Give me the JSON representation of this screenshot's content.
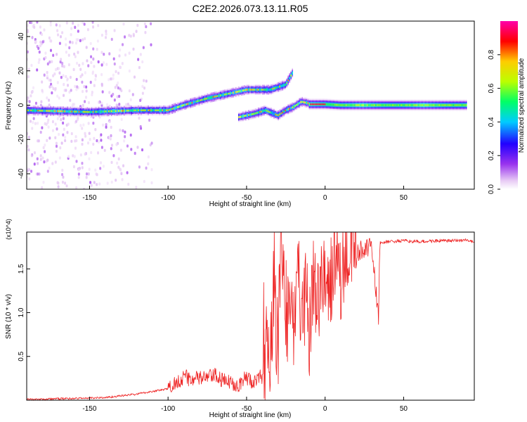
{
  "figure_title": "C2E2.2026.073.13.11.R05",
  "colors": {
    "snr_line": "#ee2222",
    "axis": "#000000",
    "background": "#ffffff"
  },
  "chart_data": [
    {
      "type": "heatmap",
      "name": "spectrogram",
      "title": "C2E2.2026.073.13.11.R05",
      "xlabel": "Height of straight line (km)",
      "ylabel": "Frequency (Hz)",
      "xlim": [
        -190,
        95
      ],
      "ylim": [
        -49,
        49
      ],
      "x_ticks": [
        -150,
        -100,
        -50,
        0,
        50
      ],
      "y_ticks": [
        -40,
        -20,
        0,
        20,
        40
      ],
      "colorbar": {
        "label": "Normalized spectral amplitude",
        "range": [
          0.0,
          1.0
        ],
        "ticks": [
          0.0,
          0.2,
          0.4,
          0.6,
          0.8
        ],
        "colormap": [
          "#ffffff",
          "#e8ccf5",
          "#9933ee",
          "#2200ff",
          "#00ccff",
          "#00ff66",
          "#bbff00",
          "#ffcc00",
          "#ff0000",
          "#ff00aa"
        ]
      },
      "features": [
        {
          "name": "main ridge",
          "points": [
            [
              -190,
              -3
            ],
            [
              -150,
              -4
            ],
            [
              -120,
              -3
            ],
            [
              -100,
              -3
            ],
            [
              -90,
              0
            ],
            [
              -75,
              4
            ],
            [
              -60,
              7
            ],
            [
              -50,
              9
            ],
            [
              -35,
              9
            ],
            [
              -25,
              12
            ],
            [
              -20,
              20
            ]
          ]
        },
        {
          "name": "secondary ridge",
          "points": [
            [
              -55,
              -7
            ],
            [
              -45,
              -5
            ],
            [
              -38,
              -3
            ],
            [
              -30,
              -6
            ],
            [
              -25,
              -3
            ],
            [
              -20,
              -1
            ],
            [
              -15,
              2
            ],
            [
              -10,
              1
            ]
          ]
        },
        {
          "name": "stable tone",
          "points": [
            [
              -10,
              0.5
            ],
            [
              0,
              0.5
            ],
            [
              10,
              0
            ],
            [
              30,
              0
            ],
            [
              50,
              0
            ],
            [
              70,
              0
            ],
            [
              90,
              0
            ]
          ]
        }
      ]
    },
    {
      "type": "line",
      "name": "snr",
      "xlabel": "Height of straight line (km)",
      "ylabel": "SNR (10 * v/v)",
      "y_multiplier": "(x10^4)",
      "xlim": [
        -190,
        95
      ],
      "ylim": [
        0,
        1.92
      ],
      "x_ticks": [
        -150,
        -100,
        -50,
        0,
        50
      ],
      "y_ticks": [
        0.5,
        1.0,
        1.5
      ],
      "series": [
        {
          "name": "SNR",
          "color": "#ee2222",
          "x": [
            -190,
            -160,
            -140,
            -130,
            -120,
            -110,
            -100,
            -95,
            -90,
            -85,
            -80,
            -75,
            -70,
            -65,
            -60,
            -55,
            -50,
            -45,
            -40,
            -37,
            -35,
            -33,
            -30,
            -28,
            -25,
            -22,
            -20,
            -17,
            -15,
            -12,
            -10,
            -7,
            -5,
            -2,
            0,
            3,
            5,
            8,
            10,
            13,
            15,
            18,
            20,
            25,
            30,
            33,
            34,
            35,
            40,
            50,
            60,
            70,
            80,
            90,
            95
          ],
          "y": [
            0.01,
            0.02,
            0.03,
            0.05,
            0.07,
            0.1,
            0.13,
            0.2,
            0.27,
            0.24,
            0.25,
            0.26,
            0.28,
            0.22,
            0.2,
            0.18,
            0.26,
            0.2,
            0.28,
            0.6,
            0.4,
            1.25,
            0.6,
            1.85,
            0.8,
            1.3,
            0.9,
            1.55,
            0.7,
            1.4,
            0.8,
            1.5,
            1.05,
            1.55,
            1.3,
            1.35,
            1.4,
            1.5,
            1.2,
            1.7,
            1.6,
            1.85,
            1.65,
            1.75,
            1.72,
            1.1,
            0.98,
            1.8,
            1.81,
            1.82,
            1.81,
            1.82,
            1.82,
            1.83,
            1.8
          ]
        }
      ]
    }
  ]
}
